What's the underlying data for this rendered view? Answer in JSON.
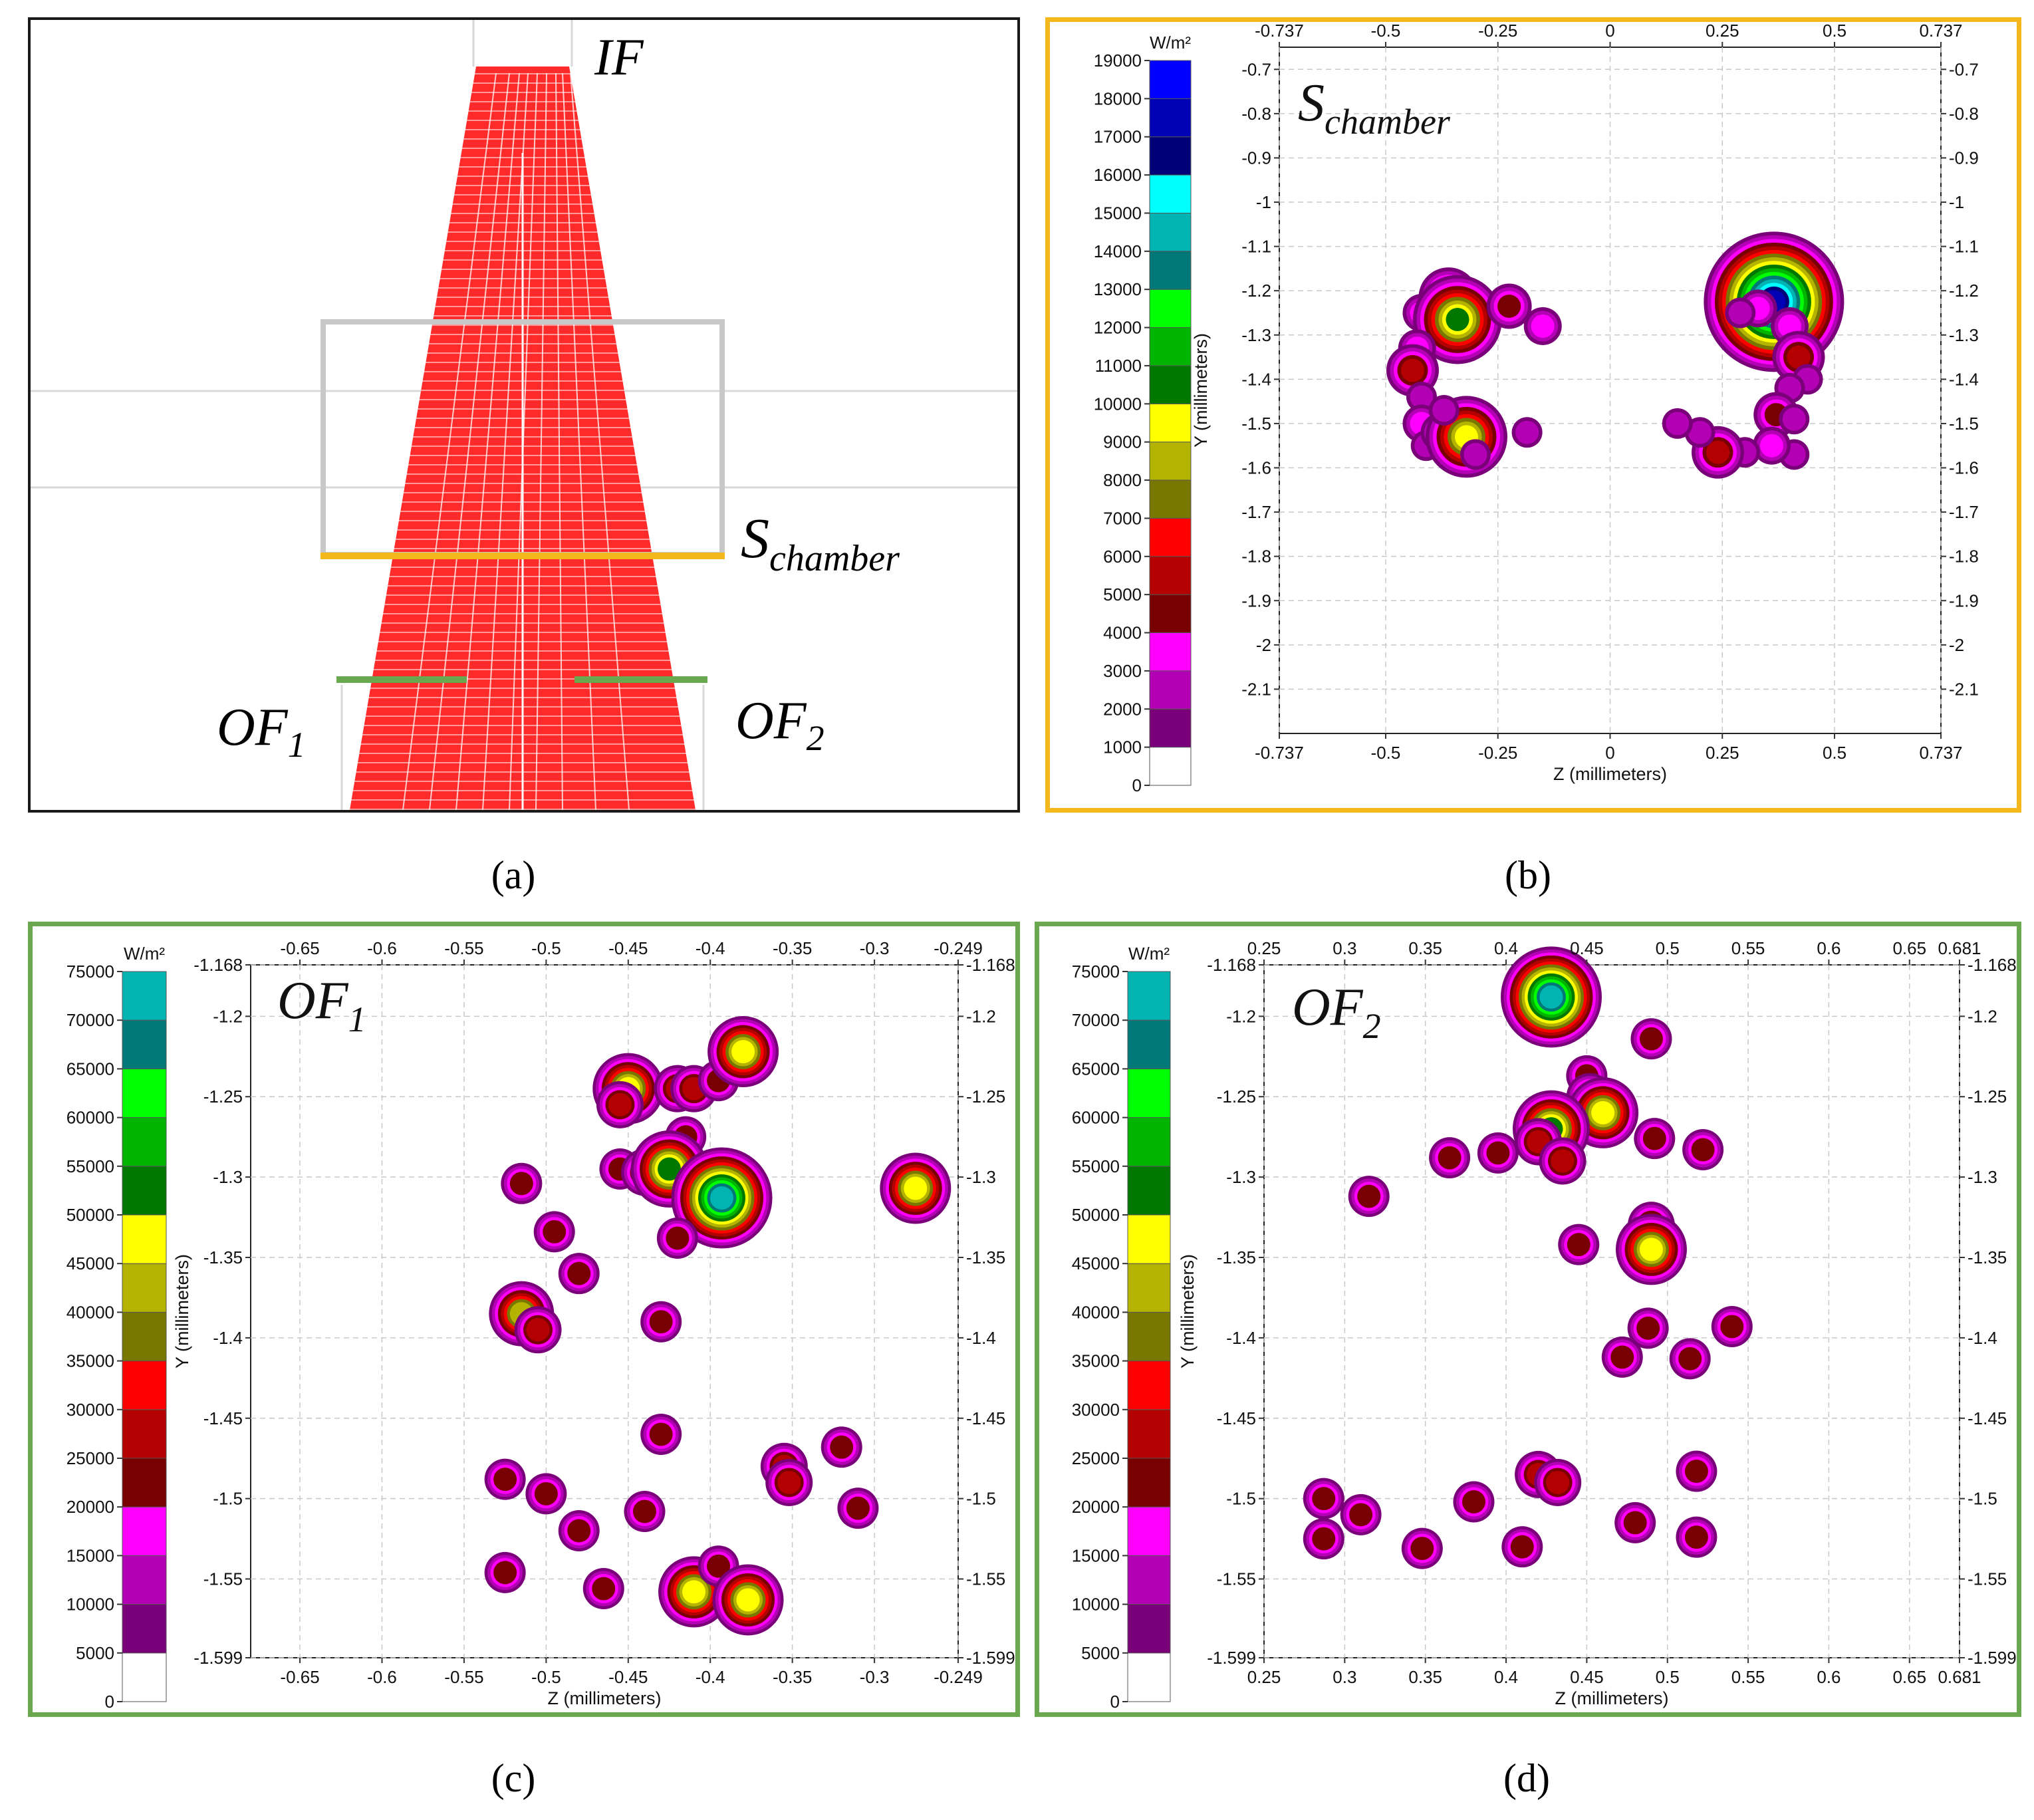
{
  "captions": {
    "a": "(a)",
    "b": "(b)",
    "c": "(c)",
    "d": "(d)"
  },
  "panel_a": {
    "labels": {
      "if_label": "IF",
      "schamber_main": "S",
      "schamber_sub": "chamber",
      "of1_main": "OF",
      "of1_sub": "1",
      "of2_main": "OF",
      "of2_sub": "2"
    },
    "colors": {
      "beam": "#ff2a2a",
      "chamber_box": "#c8c8c8",
      "schamber_line": "#f5b81c",
      "of_lines": "#6aa84f",
      "border": "#1a1a1a"
    }
  },
  "colors": {
    "scale_b": [
      "#ffffff",
      "#7a007a",
      "#b400b4",
      "#ff00ff",
      "#780000",
      "#b40000",
      "#ff0000",
      "#787800",
      "#b4b400",
      "#ffff00",
      "#007800",
      "#00b400",
      "#00ff00",
      "#007878",
      "#00b4b4",
      "#00ffff",
      "#000078",
      "#0000b4",
      "#0000ff"
    ],
    "scale_cd": [
      "#ffffff",
      "#7a007a",
      "#b400b4",
      "#ff00ff",
      "#780000",
      "#b40000",
      "#ff0000",
      "#787800",
      "#b4b400",
      "#ffff00",
      "#007800",
      "#00b400",
      "#00ff00",
      "#007878",
      "#00b4b4"
    ]
  },
  "chart_data": [
    {
      "id": "b",
      "type": "heatmap",
      "title": "S",
      "title_sub": "chamber",
      "colorbar_unit": "W/m²",
      "colorbar_ticks": [
        "0",
        "1000",
        "2000",
        "3000",
        "4000",
        "5000",
        "6000",
        "7000",
        "8000",
        "9000",
        "10000",
        "11000",
        "12000",
        "13000",
        "14000",
        "15000",
        "16000",
        "17000",
        "18000",
        "19000"
      ],
      "xlabel": "Z (millimeters)",
      "ylabel": "Y (millimeters)",
      "xlim": [
        -0.737,
        0.737
      ],
      "ylim": [
        -2.2,
        -0.65
      ],
      "x_ticks": [
        "-0.737",
        "-0.5",
        "-0.25",
        "0",
        "0.25",
        "0.5",
        "0.737"
      ],
      "x_tick_values": [
        -0.737,
        -0.5,
        -0.25,
        0,
        0.25,
        0.5,
        0.737
      ],
      "y_ticks": [
        "-0.7",
        "-0.8",
        "-0.9",
        "-1",
        "-1.1",
        "-1.2",
        "-1.3",
        "-1.4",
        "-1.5",
        "-1.6",
        "-1.7",
        "-1.8",
        "-1.9",
        "-2",
        "-2.1"
      ],
      "y_tick_values": [
        -0.7,
        -0.8,
        -0.9,
        -1,
        -1.1,
        -1.2,
        -1.3,
        -1.4,
        -1.5,
        -1.6,
        -1.7,
        -1.8,
        -1.9,
        -2,
        -2.1
      ],
      "spots": [
        {
          "z": -0.36,
          "y": -1.215,
          "peak": 6
        },
        {
          "z": -0.38,
          "y": -1.3,
          "peak": 3
        },
        {
          "z": -0.42,
          "y": -1.25,
          "peak": 3
        },
        {
          "z": -0.34,
          "y": -1.265,
          "peak": 10
        },
        {
          "z": -0.43,
          "y": -1.33,
          "peak": 3
        },
        {
          "z": -0.44,
          "y": -1.38,
          "peak": 5
        },
        {
          "z": -0.42,
          "y": -1.44,
          "peak": 2
        },
        {
          "z": -0.42,
          "y": -1.5,
          "peak": 3
        },
        {
          "z": -0.41,
          "y": -1.55,
          "peak": 2
        },
        {
          "z": -0.38,
          "y": -1.52,
          "peak": 3
        },
        {
          "z": -0.34,
          "y": -1.54,
          "peak": 3
        },
        {
          "z": -0.32,
          "y": -1.53,
          "peak": 9
        },
        {
          "z": -0.37,
          "y": -1.47,
          "peak": 2
        },
        {
          "z": -0.3,
          "y": -1.57,
          "peak": 2
        },
        {
          "z": -0.225,
          "y": -1.235,
          "peak": 4
        },
        {
          "z": -0.15,
          "y": -1.28,
          "peak": 3
        },
        {
          "z": -0.185,
          "y": -1.52,
          "peak": 2
        },
        {
          "z": 0.365,
          "y": -1.225,
          "peak": 17
        },
        {
          "z": 0.33,
          "y": -1.24,
          "peak": 3
        },
        {
          "z": 0.29,
          "y": -1.25,
          "peak": 2
        },
        {
          "z": 0.4,
          "y": -1.28,
          "peak": 3
        },
        {
          "z": 0.42,
          "y": -1.35,
          "peak": 5
        },
        {
          "z": 0.44,
          "y": -1.4,
          "peak": 2
        },
        {
          "z": 0.4,
          "y": -1.42,
          "peak": 2
        },
        {
          "z": 0.37,
          "y": -1.48,
          "peak": 4
        },
        {
          "z": 0.41,
          "y": -1.49,
          "peak": 2
        },
        {
          "z": 0.41,
          "y": -1.57,
          "peak": 2
        },
        {
          "z": 0.36,
          "y": -1.55,
          "peak": 3
        },
        {
          "z": 0.3,
          "y": -1.565,
          "peak": 2
        },
        {
          "z": 0.24,
          "y": -1.565,
          "peak": 5
        },
        {
          "z": 0.2,
          "y": -1.52,
          "peak": 2
        },
        {
          "z": 0.15,
          "y": -1.5,
          "peak": 2
        }
      ]
    },
    {
      "id": "c",
      "type": "heatmap",
      "title": "OF",
      "title_sub": "1",
      "colorbar_unit": "W/m²",
      "colorbar_ticks": [
        "0",
        "5000",
        "10000",
        "15000",
        "20000",
        "25000",
        "30000",
        "35000",
        "40000",
        "45000",
        "50000",
        "55000",
        "60000",
        "65000",
        "70000",
        "75000"
      ],
      "xlabel": "Z (millimeters)",
      "ylabel": "Y (millimeters)",
      "xlim": [
        -0.68,
        -0.249
      ],
      "ylim": [
        -1.599,
        -1.168
      ],
      "x_ticks": [
        "-0.65",
        "-0.6",
        "-0.55",
        "-0.5",
        "-0.45",
        "-0.4",
        "-0.35",
        "-0.3",
        "-0.249"
      ],
      "x_tick_values": [
        -0.65,
        -0.6,
        -0.55,
        -0.5,
        -0.45,
        -0.4,
        -0.35,
        -0.3,
        -0.249
      ],
      "y_ticks": [
        "-1.168",
        "-1.2",
        "-1.25",
        "-1.3",
        "-1.35",
        "-1.4",
        "-1.45",
        "-1.5",
        "-1.55",
        "-1.599"
      ],
      "y_tick_values": [
        -1.168,
        -1.2,
        -1.25,
        -1.3,
        -1.35,
        -1.4,
        -1.45,
        -1.5,
        -1.55,
        -1.599
      ],
      "spots": [
        {
          "z": -0.45,
          "y": -1.245,
          "peak": 9
        },
        {
          "z": -0.455,
          "y": -1.255,
          "peak": 5
        },
        {
          "z": -0.42,
          "y": -1.245,
          "peak": 5
        },
        {
          "z": -0.41,
          "y": -1.245,
          "peak": 5
        },
        {
          "z": -0.395,
          "y": -1.24,
          "peak": 4
        },
        {
          "z": -0.38,
          "y": -1.222,
          "peak": 9
        },
        {
          "z": -0.415,
          "y": -1.275,
          "peak": 4
        },
        {
          "z": -0.455,
          "y": -1.295,
          "peak": 4
        },
        {
          "z": -0.44,
          "y": -1.297,
          "peak": 5
        },
        {
          "z": -0.425,
          "y": -1.295,
          "peak": 10
        },
        {
          "z": -0.393,
          "y": -1.313,
          "peak": 14
        },
        {
          "z": -0.275,
          "y": -1.307,
          "peak": 9
        },
        {
          "z": -0.515,
          "y": -1.304,
          "peak": 4
        },
        {
          "z": -0.495,
          "y": -1.334,
          "peak": 4
        },
        {
          "z": -0.42,
          "y": -1.338,
          "peak": 4
        },
        {
          "z": -0.48,
          "y": -1.36,
          "peak": 4
        },
        {
          "z": -0.515,
          "y": -1.385,
          "peak": 8
        },
        {
          "z": -0.505,
          "y": -1.395,
          "peak": 5
        },
        {
          "z": -0.43,
          "y": -1.39,
          "peak": 4
        },
        {
          "z": -0.43,
          "y": -1.46,
          "peak": 4
        },
        {
          "z": -0.32,
          "y": -1.468,
          "peak": 4
        },
        {
          "z": -0.355,
          "y": -1.48,
          "peak": 5
        },
        {
          "z": -0.352,
          "y": -1.49,
          "peak": 5
        },
        {
          "z": -0.525,
          "y": -1.488,
          "peak": 4
        },
        {
          "z": -0.5,
          "y": -1.497,
          "peak": 4
        },
        {
          "z": -0.44,
          "y": -1.508,
          "peak": 4
        },
        {
          "z": -0.31,
          "y": -1.506,
          "peak": 4
        },
        {
          "z": -0.48,
          "y": -1.52,
          "peak": 4
        },
        {
          "z": -0.525,
          "y": -1.546,
          "peak": 4
        },
        {
          "z": -0.465,
          "y": -1.556,
          "peak": 4
        },
        {
          "z": -0.41,
          "y": -1.558,
          "peak": 9
        },
        {
          "z": -0.395,
          "y": -1.542,
          "peak": 4
        },
        {
          "z": -0.377,
          "y": -1.563,
          "peak": 9
        }
      ]
    },
    {
      "id": "d",
      "type": "heatmap",
      "title": "OF",
      "title_sub": "2",
      "colorbar_unit": "W/m²",
      "colorbar_ticks": [
        "0",
        "5000",
        "10000",
        "15000",
        "20000",
        "25000",
        "30000",
        "35000",
        "40000",
        "45000",
        "50000",
        "55000",
        "60000",
        "65000",
        "70000",
        "75000"
      ],
      "xlabel": "Z (millimeters)",
      "ylabel": "Y (millimeters)",
      "xlim": [
        0.25,
        0.681
      ],
      "ylim": [
        -1.599,
        -1.168
      ],
      "x_ticks": [
        "0.25",
        "0.3",
        "0.35",
        "0.4",
        "0.45",
        "0.5",
        "0.55",
        "0.6",
        "0.65",
        "0.681"
      ],
      "x_tick_values": [
        0.25,
        0.3,
        0.35,
        0.4,
        0.45,
        0.5,
        0.55,
        0.6,
        0.65,
        0.681
      ],
      "y_ticks": [
        "-1.168",
        "-1.2",
        "-1.25",
        "-1.3",
        "-1.35",
        "-1.4",
        "-1.45",
        "-1.5",
        "-1.55",
        "-1.599"
      ],
      "y_tick_values": [
        -1.168,
        -1.2,
        -1.25,
        -1.3,
        -1.35,
        -1.4,
        -1.45,
        -1.5,
        -1.55,
        -1.599
      ],
      "spots": [
        {
          "z": 0.428,
          "y": -1.188,
          "peak": 14
        },
        {
          "z": 0.49,
          "y": -1.214,
          "peak": 4
        },
        {
          "z": 0.45,
          "y": -1.237,
          "peak": 4
        },
        {
          "z": 0.452,
          "y": -1.25,
          "peak": 5
        },
        {
          "z": 0.46,
          "y": -1.26,
          "peak": 9
        },
        {
          "z": 0.425,
          "y": -1.265,
          "peak": 6
        },
        {
          "z": 0.428,
          "y": -1.27,
          "peak": 10
        },
        {
          "z": 0.42,
          "y": -1.278,
          "peak": 5
        },
        {
          "z": 0.435,
          "y": -1.29,
          "peak": 5
        },
        {
          "z": 0.395,
          "y": -1.285,
          "peak": 4
        },
        {
          "z": 0.365,
          "y": -1.288,
          "peak": 4
        },
        {
          "z": 0.492,
          "y": -1.276,
          "peak": 4
        },
        {
          "z": 0.522,
          "y": -1.283,
          "peak": 4
        },
        {
          "z": 0.315,
          "y": -1.312,
          "peak": 4
        },
        {
          "z": 0.49,
          "y": -1.33,
          "peak": 5
        },
        {
          "z": 0.49,
          "y": -1.345,
          "peak": 9
        },
        {
          "z": 0.445,
          "y": -1.342,
          "peak": 4
        },
        {
          "z": 0.488,
          "y": -1.394,
          "peak": 4
        },
        {
          "z": 0.54,
          "y": -1.393,
          "peak": 4
        },
        {
          "z": 0.472,
          "y": -1.412,
          "peak": 4
        },
        {
          "z": 0.514,
          "y": -1.413,
          "peak": 4
        },
        {
          "z": 0.42,
          "y": -1.485,
          "peak": 5
        },
        {
          "z": 0.432,
          "y": -1.49,
          "peak": 5
        },
        {
          "z": 0.518,
          "y": -1.483,
          "peak": 4
        },
        {
          "z": 0.287,
          "y": -1.5,
          "peak": 4
        },
        {
          "z": 0.38,
          "y": -1.502,
          "peak": 4
        },
        {
          "z": 0.31,
          "y": -1.51,
          "peak": 4
        },
        {
          "z": 0.48,
          "y": -1.515,
          "peak": 4
        },
        {
          "z": 0.287,
          "y": -1.525,
          "peak": 4
        },
        {
          "z": 0.518,
          "y": -1.524,
          "peak": 4
        },
        {
          "z": 0.348,
          "y": -1.531,
          "peak": 4
        },
        {
          "z": 0.41,
          "y": -1.53,
          "peak": 4
        }
      ]
    }
  ]
}
